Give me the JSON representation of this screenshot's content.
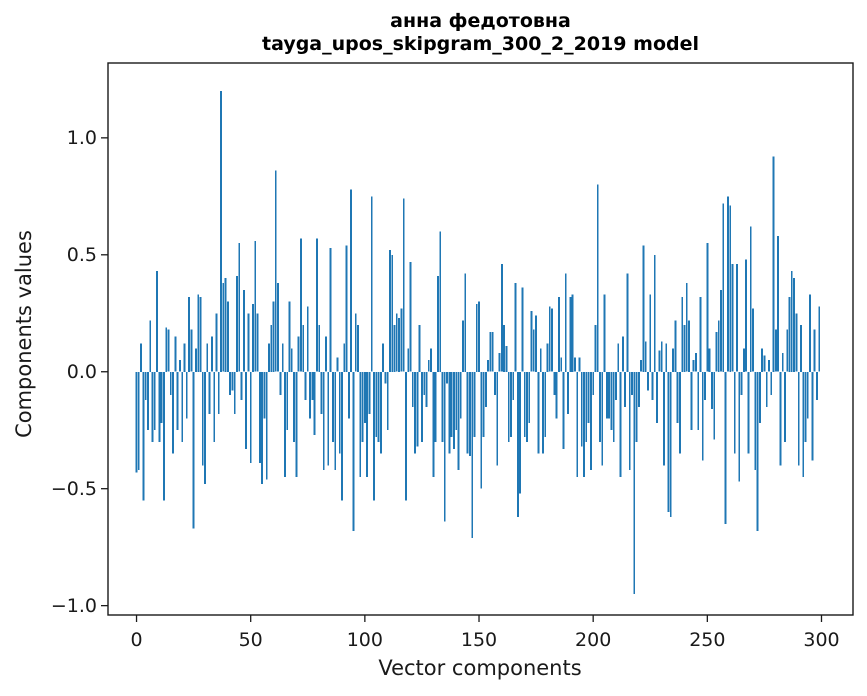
{
  "figure": {
    "title_line1": "анна федотовна",
    "title_line2": "tayga_upos_skipgram_300_2_2019 model"
  },
  "chart_data": {
    "type": "bar",
    "title": "анна федотовна\ntayga_upos_skipgram_300_2_2019 model",
    "xlabel": "Vector components",
    "ylabel": "Components values",
    "x_range": [
      0,
      299
    ],
    "xlim": [
      -12.5,
      313.8
    ],
    "ylim": [
      -1.04,
      1.32
    ],
    "x_tick_values": [
      0,
      50,
      100,
      150,
      200,
      250,
      300
    ],
    "x_tick_labels": [
      "0",
      "50",
      "100",
      "150",
      "200",
      "250",
      "300"
    ],
    "y_tick_values": [
      1.0,
      0.5,
      0.0,
      -0.5,
      -1.0
    ],
    "y_tick_labels": [
      "1.0",
      "0.5",
      "0.0",
      "−0.5",
      "−1.0"
    ],
    "grid": false,
    "legend": "none",
    "bar_width_units": 0.8,
    "colors": {
      "bar": "#1f77b4",
      "axis": "#1a1a1a",
      "text": "#1a1a1a",
      "background": "#ffffff"
    },
    "values": [
      -0.43,
      -0.42,
      0.12,
      -0.55,
      -0.12,
      -0.25,
      0.22,
      -0.3,
      -0.25,
      0.43,
      -0.3,
      -0.22,
      -0.55,
      0.19,
      0.18,
      -0.1,
      -0.35,
      0.15,
      -0.25,
      0.05,
      -0.3,
      0.12,
      -0.2,
      0.32,
      0.18,
      -0.67,
      0.1,
      0.33,
      0.32,
      -0.4,
      -0.48,
      0.12,
      -0.18,
      0.15,
      -0.3,
      0.25,
      -0.18,
      1.2,
      0.38,
      0.4,
      0.3,
      -0.1,
      -0.08,
      -0.18,
      0.41,
      0.55,
      -0.12,
      0.35,
      -0.33,
      0.25,
      -0.39,
      0.29,
      0.56,
      0.25,
      -0.39,
      -0.48,
      -0.2,
      -0.46,
      0.12,
      0.2,
      0.3,
      0.86,
      0.38,
      -0.1,
      0.12,
      -0.45,
      -0.25,
      0.3,
      0.1,
      -0.3,
      -0.45,
      0.15,
      0.57,
      0.2,
      -0.12,
      0.28,
      -0.2,
      -0.12,
      -0.27,
      0.57,
      0.2,
      -0.18,
      -0.42,
      0.15,
      -0.4,
      0.53,
      -0.3,
      -0.42,
      0.06,
      -0.35,
      -0.55,
      0.12,
      0.54,
      -0.2,
      0.78,
      -0.68,
      0.25,
      0.2,
      -0.45,
      -0.3,
      -0.22,
      -0.45,
      -0.18,
      0.75,
      -0.55,
      -0.28,
      -0.3,
      -0.35,
      0.12,
      -0.05,
      -0.25,
      0.52,
      0.5,
      0.2,
      0.25,
      0.23,
      0.27,
      0.74,
      -0.55,
      0.1,
      0.47,
      -0.15,
      -0.35,
      -0.32,
      0.2,
      -0.3,
      -0.1,
      -0.15,
      0.05,
      0.1,
      -0.45,
      -0.3,
      0.41,
      0.6,
      -0.3,
      -0.64,
      -0.05,
      -0.35,
      -0.28,
      -0.33,
      -0.25,
      -0.42,
      -0.2,
      0.22,
      0.42,
      -0.35,
      -0.36,
      -0.71,
      -0.28,
      0.29,
      0.3,
      -0.5,
      -0.28,
      -0.15,
      0.05,
      0.17,
      0.17,
      -0.1,
      -0.4,
      0.08,
      0.46,
      0.2,
      0.11,
      -0.3,
      -0.28,
      -0.12,
      0.38,
      -0.62,
      -0.52,
      0.36,
      -0.28,
      -0.3,
      -0.22,
      0.26,
      0.18,
      0.24,
      -0.35,
      0.1,
      -0.35,
      -0.28,
      0.12,
      0.28,
      0.27,
      -0.1,
      -0.2,
      0.32,
      0.06,
      -0.33,
      0.42,
      -0.18,
      0.32,
      0.33,
      0.06,
      -0.45,
      0.06,
      -0.32,
      -0.45,
      -0.3,
      -0.22,
      -0.42,
      -0.1,
      0.2,
      0.8,
      -0.3,
      -0.4,
      0.33,
      -0.2,
      -0.2,
      -0.25,
      -0.3,
      -0.12,
      0.12,
      -0.45,
      0.15,
      -0.15,
      0.42,
      -0.42,
      -0.1,
      -0.95,
      -0.3,
      -0.15,
      0.05,
      0.54,
      0.13,
      -0.08,
      0.33,
      -0.12,
      0.5,
      -0.22,
      0.09,
      0.13,
      -0.4,
      0.12,
      -0.6,
      -0.62,
      0.1,
      0.22,
      -0.22,
      -0.35,
      0.32,
      0.2,
      0.38,
      0.22,
      -0.25,
      0.05,
      0.08,
      -0.25,
      0.32,
      -0.38,
      -0.12,
      0.55,
      0.1,
      -0.16,
      -0.29,
      0.17,
      0.22,
      0.35,
      0.72,
      -0.65,
      0.75,
      0.71,
      0.46,
      -0.35,
      0.46,
      -0.47,
      -0.1,
      0.1,
      0.48,
      -0.35,
      0.62,
      0.27,
      -0.42,
      -0.68,
      -0.22,
      0.1,
      0.07,
      -0.15,
      0.05,
      -0.1,
      0.92,
      0.18,
      0.58,
      -0.4,
      0.08,
      -0.3,
      0.18,
      0.32,
      0.43,
      0.4,
      0.25,
      -0.4,
      0.2,
      -0.45,
      -0.3,
      -0.2,
      0.33,
      -0.38,
      0.18,
      -0.12,
      0.28
    ]
  }
}
